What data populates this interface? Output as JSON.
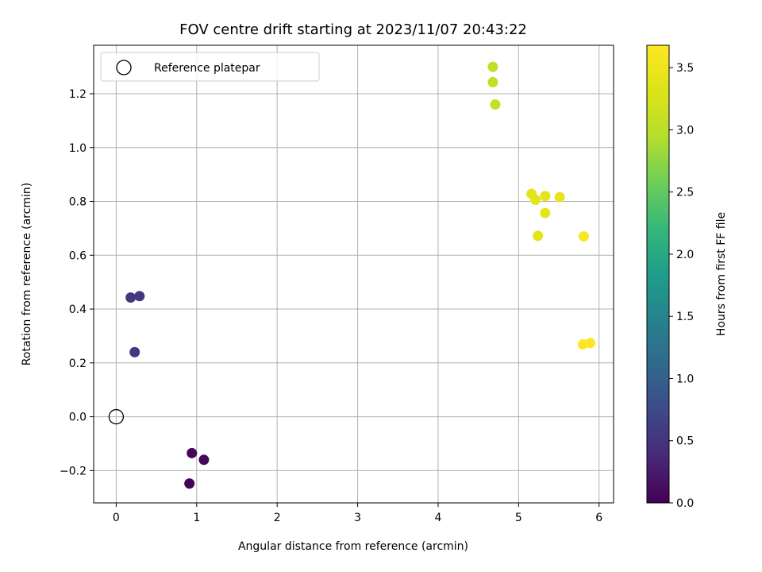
{
  "chart_data": {
    "type": "scatter",
    "title": "FOV centre drift starting at 2023/11/07 20:43:22",
    "xlabel": "Angular distance from reference (arcmin)",
    "ylabel": "Rotation from reference (arcmin)",
    "xlim": [
      -0.28,
      6.18
    ],
    "ylim": [
      -0.32,
      1.38
    ],
    "xticks": [
      0,
      1,
      2,
      3,
      4,
      5,
      6
    ],
    "xtick_labels": [
      "0",
      "1",
      "2",
      "3",
      "4",
      "5",
      "6"
    ],
    "yticks": [
      -0.2,
      0.0,
      0.2,
      0.4,
      0.6,
      0.8,
      1.0,
      1.2
    ],
    "ytick_labels": [
      "−0.2",
      "0.0",
      "0.2",
      "0.4",
      "0.6",
      "0.8",
      "1.0",
      "1.2"
    ],
    "grid": true,
    "legend": {
      "position": "top-left",
      "entries": [
        "Reference platepar"
      ]
    },
    "reference": {
      "label": "Reference platepar",
      "x": 0.0,
      "y": 0.0
    },
    "colorbar": {
      "label": "Hours from first FF file",
      "colormap": "viridis",
      "range": [
        0.0,
        3.68
      ],
      "ticks": [
        0.0,
        0.5,
        1.0,
        1.5,
        2.0,
        2.5,
        3.0,
        3.5
      ],
      "tick_labels": [
        "0.0",
        "0.5",
        "1.0",
        "1.5",
        "2.0",
        "2.5",
        "3.0",
        "3.5"
      ]
    },
    "points": [
      {
        "x": 0.91,
        "y": -0.248,
        "c": 0.02
      },
      {
        "x": 0.94,
        "y": -0.135,
        "c": 0.05
      },
      {
        "x": 1.09,
        "y": -0.16,
        "c": 0.08
      },
      {
        "x": 0.18,
        "y": 0.443,
        "c": 0.55
      },
      {
        "x": 0.29,
        "y": 0.448,
        "c": 0.56
      },
      {
        "x": 0.23,
        "y": 0.24,
        "c": 0.55
      },
      {
        "x": 4.68,
        "y": 1.3,
        "c": 3.05
      },
      {
        "x": 4.68,
        "y": 1.243,
        "c": 3.07
      },
      {
        "x": 4.71,
        "y": 1.16,
        "c": 3.08
      },
      {
        "x": 5.16,
        "y": 0.828,
        "c": 3.4
      },
      {
        "x": 5.21,
        "y": 0.806,
        "c": 3.38
      },
      {
        "x": 5.33,
        "y": 0.82,
        "c": 3.4
      },
      {
        "x": 5.51,
        "y": 0.816,
        "c": 3.42
      },
      {
        "x": 5.33,
        "y": 0.757,
        "c": 3.38
      },
      {
        "x": 5.24,
        "y": 0.672,
        "c": 3.37
      },
      {
        "x": 5.81,
        "y": 0.67,
        "c": 3.62
      },
      {
        "x": 5.8,
        "y": 0.269,
        "c": 3.66
      },
      {
        "x": 5.89,
        "y": 0.274,
        "c": 3.68
      }
    ]
  }
}
